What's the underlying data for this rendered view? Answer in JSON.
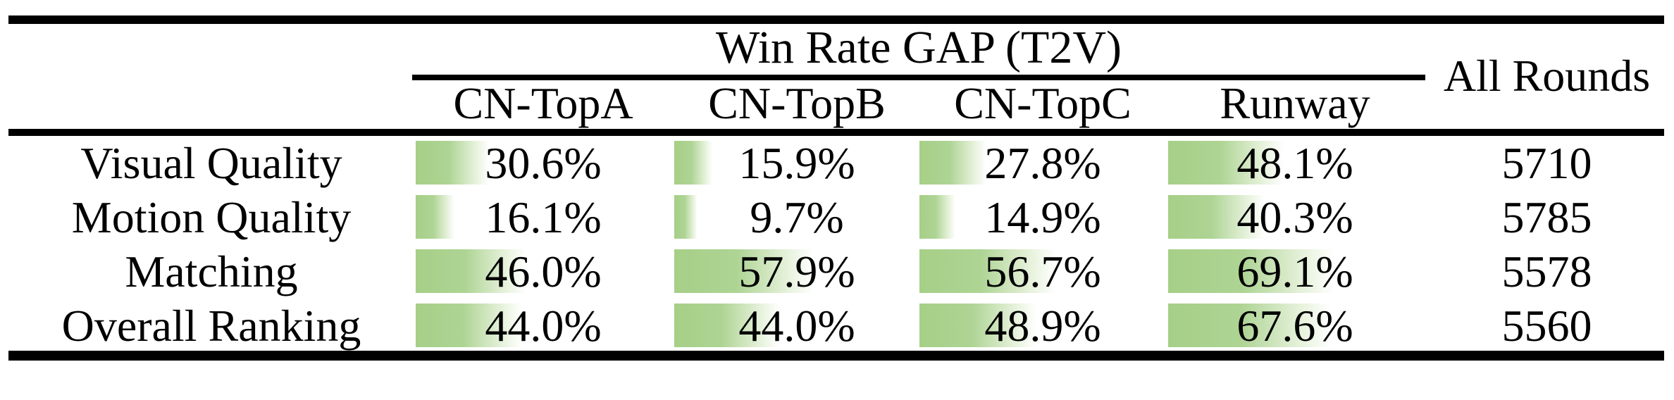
{
  "table": {
    "group_title": "Win Rate GAP (T2V)",
    "all_rounds_header": "All Rounds",
    "columns": [
      "CN-TopA",
      "CN-TopB",
      "CN-TopC",
      "Runway"
    ],
    "rows": [
      {
        "label": "Visual Quality",
        "cells": [
          {
            "text": "30.6%",
            "value": 30.6
          },
          {
            "text": "15.9%",
            "value": 15.9
          },
          {
            "text": "27.8%",
            "value": 27.8
          },
          {
            "text": "48.1%",
            "value": 48.1
          }
        ],
        "all_rounds": "5710"
      },
      {
        "label": "Motion Quality",
        "cells": [
          {
            "text": "16.1%",
            "value": 16.1
          },
          {
            "text": "9.7%",
            "value": 9.7
          },
          {
            "text": "14.9%",
            "value": 14.9
          },
          {
            "text": "40.3%",
            "value": 40.3
          }
        ],
        "all_rounds": "5785"
      },
      {
        "label": "Matching",
        "cells": [
          {
            "text": "46.0%",
            "value": 46.0
          },
          {
            "text": "57.9%",
            "value": 57.9
          },
          {
            "text": "56.7%",
            "value": 56.7
          },
          {
            "text": "69.1%",
            "value": 69.1
          }
        ],
        "all_rounds": "5578"
      },
      {
        "label": "Overall Ranking",
        "cells": [
          {
            "text": "44.0%",
            "value": 44.0
          },
          {
            "text": "44.0%",
            "value": 44.0
          },
          {
            "text": "48.9%",
            "value": 48.9
          },
          {
            "text": "67.6%",
            "value": 67.6
          }
        ],
        "all_rounds": "5560"
      }
    ],
    "colors": {
      "bar_green": "#aed494",
      "text": "#000000",
      "rule": "#000000",
      "background": "#ffffff"
    }
  },
  "chart_data": {
    "type": "table",
    "title": "Win Rate GAP (T2V)",
    "categories": [
      "Visual Quality",
      "Motion Quality",
      "Matching",
      "Overall Ranking"
    ],
    "series": [
      {
        "name": "CN-TopA",
        "values": [
          30.6,
          16.1,
          46.0,
          44.0
        ]
      },
      {
        "name": "CN-TopB",
        "values": [
          15.9,
          9.7,
          57.9,
          44.0
        ]
      },
      {
        "name": "CN-TopC",
        "values": [
          27.8,
          14.9,
          56.7,
          48.9
        ]
      },
      {
        "name": "Runway",
        "values": [
          48.1,
          40.3,
          69.1,
          67.6
        ]
      },
      {
        "name": "All Rounds",
        "values": [
          5710,
          5785,
          5578,
          5560
        ]
      }
    ],
    "value_unit": "%",
    "notes": "Green in-cell data bars proportional to percentage; All Rounds column is round counts"
  }
}
